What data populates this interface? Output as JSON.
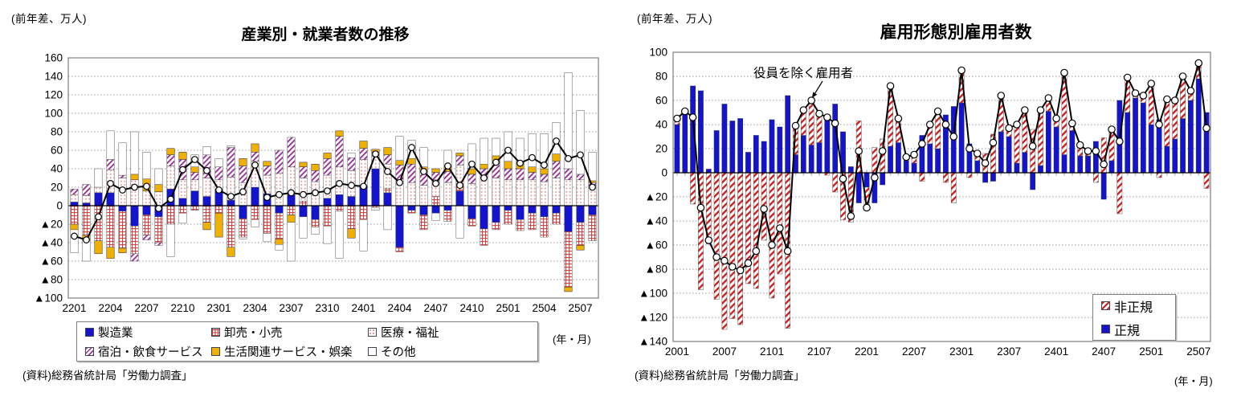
{
  "chart_data": [
    {
      "type": "stacked-bar-line",
      "title": "産業別・就業者数の推移",
      "unit_label": "(前年差、万人)",
      "x_unit_label": "(年・月)",
      "source": "(資料)総務省統計局「労働力調査」",
      "ylim": [
        -100,
        160
      ],
      "ytick_step": 20,
      "y_tick_labels": [
        "160",
        "140",
        "120",
        "100",
        "80",
        "60",
        "40",
        "20",
        "0",
        "▲20",
        "▲40",
        "▲60",
        "▲80",
        "▲100"
      ],
      "x_tick_every": 3,
      "x_tick_labels": [
        "2201",
        "2204",
        "2207",
        "2210",
        "2301",
        "2304",
        "2307",
        "2310",
        "2401",
        "2404",
        "2407",
        "2410",
        "2501",
        "2504",
        "2507"
      ],
      "categories": [
        "2201",
        "2202",
        "2203",
        "2204",
        "2205",
        "2206",
        "2207",
        "2208",
        "2209",
        "2210",
        "2211",
        "2212",
        "2301",
        "2302",
        "2303",
        "2304",
        "2305",
        "2306",
        "2307",
        "2308",
        "2309",
        "2310",
        "2311",
        "2312",
        "2401",
        "2402",
        "2403",
        "2404",
        "2405",
        "2406",
        "2407",
        "2408",
        "2409",
        "2410",
        "2411",
        "2412",
        "2501",
        "2502",
        "2503",
        "2504",
        "2505",
        "2506",
        "2507",
        "2508"
      ],
      "series": [
        {
          "name": "製造業",
          "style": "solid",
          "color": "#1414cc",
          "values": [
            4,
            3,
            14,
            14,
            -6,
            -22,
            -10,
            -12,
            18,
            8,
            16,
            10,
            18,
            6,
            -14,
            20,
            13,
            -8,
            12,
            -12,
            -15,
            8,
            12,
            10,
            22,
            40,
            14,
            -45,
            -5,
            -10,
            -8,
            -5,
            16,
            -14,
            -25,
            -18,
            -5,
            -15,
            -8,
            -12,
            -8,
            -28,
            -18,
            -10
          ]
        },
        {
          "name": "卸売・小売",
          "style": "red-check",
          "color": "#cc3333",
          "values": [
            -20,
            -32,
            -38,
            -45,
            -40,
            -30,
            -22,
            -28,
            -20,
            -8,
            -5,
            -18,
            -8,
            -45,
            -20,
            -15,
            -30,
            -28,
            -10,
            5,
            -8,
            -22,
            -6,
            -25,
            -15,
            -2,
            5,
            -5,
            -3,
            -16,
            10,
            -12,
            8,
            -8,
            -18,
            -8,
            -15,
            -12,
            -18,
            -22,
            -12,
            -60,
            -25,
            -28
          ]
        },
        {
          "name": "医療・福祉",
          "style": "pink-dots",
          "color": "#e08f8f",
          "values": [
            8,
            8,
            6,
            25,
            30,
            28,
            16,
            15,
            25,
            20,
            12,
            20,
            10,
            25,
            25,
            28,
            20,
            35,
            30,
            25,
            26,
            25,
            30,
            28,
            28,
            14,
            26,
            26,
            25,
            22,
            18,
            25,
            20,
            24,
            30,
            30,
            28,
            28,
            28,
            26,
            30,
            28,
            28,
            22
          ]
        },
        {
          "name": "宿泊・飲食サービス",
          "style": "purple-hatch",
          "color": "#993399",
          "values": [
            6,
            12,
            0,
            11,
            3,
            -8,
            -5,
            -3,
            12,
            22,
            8,
            25,
            14,
            32,
            18,
            10,
            10,
            25,
            32,
            12,
            12,
            18,
            33,
            14,
            12,
            4,
            10,
            18,
            20,
            14,
            8,
            12,
            10,
            10,
            10,
            16,
            12,
            12,
            8,
            8,
            18,
            12,
            6,
            3
          ]
        },
        {
          "name": "生活関連サービス・娯楽",
          "style": "solid",
          "color": "#f0b000",
          "values": [
            -6,
            -6,
            -14,
            -12,
            -5,
            6,
            13,
            8,
            7,
            8,
            6,
            -8,
            -26,
            -10,
            8,
            9,
            5,
            -6,
            -8,
            5,
            7,
            6,
            6,
            -10,
            8,
            3,
            8,
            5,
            6,
            6,
            4,
            6,
            3,
            6,
            5,
            8,
            8,
            8,
            6,
            6,
            8,
            -5,
            -5,
            2
          ]
        },
        {
          "name": "その他",
          "style": "solid",
          "color": "#ffffff",
          "values": [
            -25,
            -22,
            20,
            31,
            35,
            46,
            29,
            17,
            -35,
            -11,
            13,
            9,
            9,
            2,
            -2,
            -8,
            -9,
            -6,
            -42,
            -23,
            -8,
            -19,
            -51,
            5,
            -34,
            -3,
            -26,
            26,
            20,
            21,
            -8,
            17,
            -35,
            27,
            28,
            19,
            32,
            25,
            36,
            38,
            34,
            104,
            69,
            31
          ]
        }
      ],
      "line": {
        "values": [
          -33,
          -37,
          -12,
          24,
          17,
          20,
          21,
          -3,
          7,
          39,
          50,
          38,
          17,
          10,
          15,
          44,
          9,
          12,
          14,
          12,
          14,
          16,
          24,
          22,
          21,
          56,
          37,
          25,
          63,
          37,
          24,
          43,
          22,
          45,
          30,
          47,
          60,
          46,
          52,
          44,
          70,
          51,
          55,
          20
        ]
      }
    },
    {
      "type": "stacked-bar-line",
      "title": "雇用形態別雇用者数",
      "unit_label": "(前年差、万人)",
      "x_unit_label": "(年・月)",
      "source": "(資料)総務省統計局「労働力調査」",
      "annotation": "役員を除く雇用者",
      "ylim": [
        -140,
        100
      ],
      "ytick_step": 20,
      "y_tick_labels": [
        "100",
        "80",
        "60",
        "40",
        "20",
        "0",
        "▲20",
        "▲40",
        "▲60",
        "▲80",
        "▲100",
        "▲120",
        "▲140"
      ],
      "x_tick_every": 6,
      "x_tick_labels": [
        "2001",
        "2007",
        "2101",
        "2107",
        "2201",
        "2207",
        "2301",
        "2307",
        "2401",
        "2407",
        "2501",
        "2507"
      ],
      "categories": [
        "2001",
        "2002",
        "2003",
        "2004",
        "2005",
        "2006",
        "2007",
        "2008",
        "2009",
        "2010",
        "2011",
        "2012",
        "2101",
        "2102",
        "2103",
        "2104",
        "2105",
        "2106",
        "2107",
        "2108",
        "2109",
        "2110",
        "2111",
        "2112",
        "2201",
        "2202",
        "2203",
        "2204",
        "2205",
        "2206",
        "2207",
        "2208",
        "2209",
        "2210",
        "2211",
        "2212",
        "2301",
        "2302",
        "2303",
        "2304",
        "2305",
        "2306",
        "2307",
        "2308",
        "2309",
        "2310",
        "2311",
        "2312",
        "2401",
        "2402",
        "2403",
        "2404",
        "2405",
        "2406",
        "2407",
        "2408",
        "2409",
        "2410",
        "2411",
        "2412",
        "2501",
        "2502",
        "2503",
        "2504",
        "2505",
        "2506",
        "2507",
        "2508"
      ],
      "series": [
        {
          "name": "正規",
          "style": "solid",
          "color": "#1414cc",
          "values": [
            40,
            50,
            72,
            68,
            3,
            35,
            57,
            43,
            45,
            17,
            31,
            26,
            44,
            38,
            64,
            15,
            31,
            23,
            25,
            48,
            57,
            34,
            5,
            -25,
            -12,
            -25,
            -10,
            22,
            25,
            10,
            8,
            31,
            24,
            20,
            48,
            55,
            58,
            24,
            10,
            -8,
            -7,
            34,
            30,
            8,
            17,
            -14,
            6,
            51,
            38,
            15,
            35,
            14,
            14,
            26,
            -22,
            10,
            60,
            50,
            62,
            58,
            40,
            44,
            22,
            28,
            45,
            60,
            78,
            50
          ]
        },
        {
          "name": "非正規",
          "style": "red-hatch",
          "color": "#cc2222",
          "values": [
            5,
            1,
            -26,
            -97,
            -59,
            -105,
            -130,
            -121,
            -126,
            -92,
            -96,
            -56,
            -104,
            -84,
            -129,
            24,
            21,
            37,
            24,
            -2,
            -16,
            -39,
            -41,
            43,
            -17,
            21,
            28,
            50,
            20,
            3,
            7,
            -7,
            16,
            31,
            -8,
            -25,
            27,
            -4,
            6,
            16,
            32,
            30,
            7,
            32,
            35,
            36,
            46,
            11,
            7,
            68,
            6,
            9,
            4,
            -8,
            29,
            26,
            -34,
            29,
            4,
            6,
            34,
            -4,
            39,
            32,
            35,
            8,
            13,
            -13
          ]
        }
      ],
      "line": {
        "values": [
          45,
          51,
          46,
          -29,
          -56,
          -70,
          -73,
          -78,
          -81,
          -75,
          -65,
          -30,
          -60,
          -46,
          -65,
          39,
          52,
          60,
          49,
          46,
          41,
          -5,
          -36,
          18,
          -29,
          -4,
          18,
          72,
          45,
          13,
          15,
          24,
          40,
          51,
          40,
          30,
          85,
          20,
          16,
          8,
          25,
          64,
          37,
          40,
          52,
          22,
          52,
          62,
          45,
          83,
          41,
          23,
          18,
          18,
          7,
          36,
          26,
          79,
          66,
          64,
          74,
          40,
          61,
          60,
          80,
          68,
          91,
          37
        ]
      }
    }
  ]
}
